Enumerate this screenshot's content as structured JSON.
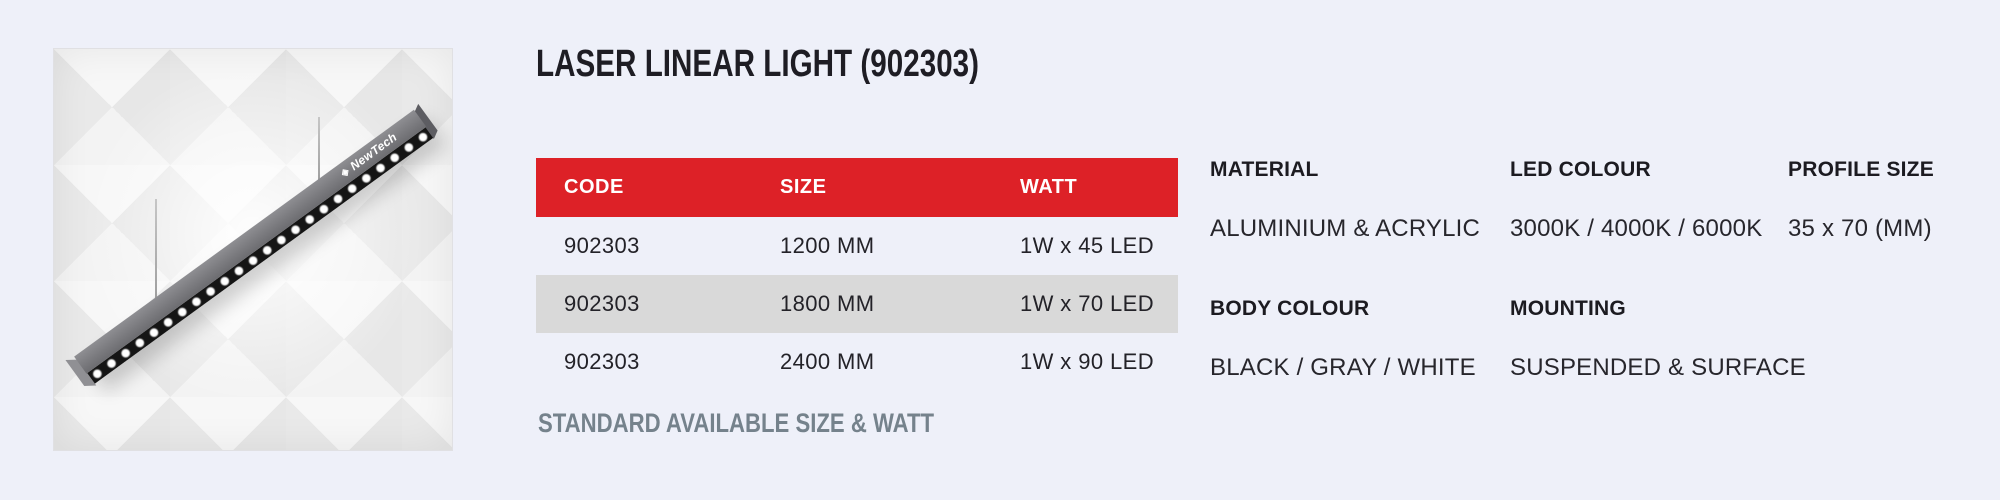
{
  "header": {
    "title": "LASER LINEAR LIGHT (902303)"
  },
  "photo": {
    "brand": "NewTech",
    "diamond_icon": "◈"
  },
  "table": {
    "headers": [
      "CODE",
      "SIZE",
      "WATT"
    ],
    "rows": [
      [
        "902303",
        "1200 MM",
        "1W x 45 LED"
      ],
      [
        "902303",
        "1800 MM",
        "1W x 70 LED"
      ],
      [
        "902303",
        "2400 MM",
        "1W x 90 LED"
      ]
    ]
  },
  "footer": {
    "note": "STANDARD AVAILABLE SIZE & WATT"
  },
  "specs": [
    {
      "label": "MATERIAL",
      "value": "ALUMINIUM & ACRYLIC"
    },
    {
      "label": "LED COLOUR",
      "value": "3000K / 4000K / 6000K"
    },
    {
      "label": "PROFILE SIZE",
      "value": "35 x 70 (MM)"
    },
    {
      "label": "BODY COLOUR",
      "value": "BLACK / GRAY / WHITE"
    },
    {
      "label": "MOUNTING",
      "value": "SUSPENDED & SURFACE"
    }
  ],
  "colors": {
    "accent_red": "#dd2127",
    "alt_row_gray": "#d9d9d9",
    "page_background": "#eef0f9",
    "note_gray": "#75828c"
  }
}
